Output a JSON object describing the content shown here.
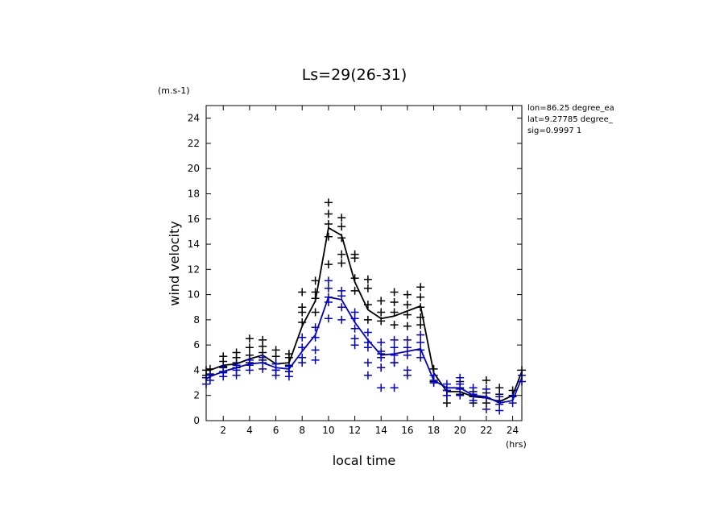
{
  "chart_data": {
    "type": "line",
    "title": "Ls=29(26-31)",
    "xlabel": "local time",
    "ylabel": "wind velocity",
    "y_unit": "(m.s-1)",
    "x_unit": "(hrs)",
    "xlim": [
      0.7,
      24.7
    ],
    "ylim": [
      0,
      25
    ],
    "x_ticks": [
      2,
      4,
      6,
      8,
      10,
      12,
      14,
      16,
      18,
      20,
      22,
      24
    ],
    "y_ticks": [
      0,
      2,
      4,
      6,
      8,
      10,
      12,
      14,
      16,
      18,
      20,
      22,
      24
    ],
    "info_lines": [
      "lon=86.25 degree_ea",
      "lat=9.27785 degree_",
      "sig=0.9997 1"
    ],
    "colors": {
      "black_series": "#000000",
      "blue_series": "#0000cc"
    },
    "series": [
      {
        "color": "#000000",
        "x": [
          0.7,
          1,
          2,
          3,
          4,
          5,
          6,
          7,
          8,
          9,
          10,
          11,
          12,
          13,
          14,
          15,
          16,
          17,
          18,
          19,
          20,
          21,
          22,
          23,
          24,
          24.7
        ],
        "values": [
          4.0,
          4.0,
          4.4,
          4.5,
          4.9,
          5.2,
          4.5,
          4.6,
          7.5,
          9.5,
          15.3,
          14.7,
          11.0,
          8.8,
          8.1,
          8.3,
          8.7,
          9.1,
          3.8,
          2.3,
          2.3,
          1.9,
          1.8,
          1.5,
          2.0,
          3.9
        ],
        "scatter": [
          [
            0.7,
            4.0
          ],
          [
            0.7,
            3.6
          ],
          [
            1,
            4.1
          ],
          [
            1,
            3.7
          ],
          [
            2,
            5.1
          ],
          [
            2,
            4.7
          ],
          [
            2,
            4.3
          ],
          [
            2,
            3.9
          ],
          [
            3,
            5.4
          ],
          [
            3,
            5.0
          ],
          [
            3,
            4.6
          ],
          [
            3,
            4.2
          ],
          [
            4,
            6.5
          ],
          [
            4,
            5.8
          ],
          [
            4,
            5.2
          ],
          [
            4,
            4.6
          ],
          [
            5,
            6.4
          ],
          [
            5,
            5.9
          ],
          [
            5,
            5.4
          ],
          [
            5,
            4.8
          ],
          [
            6,
            5.6
          ],
          [
            6,
            5.1
          ],
          [
            6,
            4.5
          ],
          [
            6,
            4.0
          ],
          [
            7,
            5.3
          ],
          [
            7,
            5.0
          ],
          [
            7,
            4.4
          ],
          [
            7,
            3.9
          ],
          [
            8,
            10.2
          ],
          [
            8,
            9.0
          ],
          [
            8,
            8.6
          ],
          [
            8,
            7.8
          ],
          [
            9,
            11.1
          ],
          [
            9,
            10.2
          ],
          [
            9,
            9.7
          ],
          [
            9,
            8.6
          ],
          [
            10,
            17.3
          ],
          [
            10,
            16.4
          ],
          [
            10,
            15.6
          ],
          [
            10,
            14.6
          ],
          [
            10,
            12.4
          ],
          [
            11,
            16.1
          ],
          [
            11,
            15.4
          ],
          [
            11,
            14.5
          ],
          [
            11,
            13.2
          ],
          [
            11,
            12.5
          ],
          [
            12,
            13.2
          ],
          [
            12,
            12.9
          ],
          [
            12,
            11.3
          ],
          [
            12,
            10.3
          ],
          [
            13,
            11.2
          ],
          [
            13,
            10.5
          ],
          [
            13,
            9.2
          ],
          [
            13,
            8.0
          ],
          [
            14,
            9.5
          ],
          [
            14,
            8.6
          ],
          [
            14,
            7.9
          ],
          [
            14,
            5.3
          ],
          [
            14,
            4.2
          ],
          [
            15,
            10.2
          ],
          [
            15,
            9.4
          ],
          [
            15,
            8.6
          ],
          [
            15,
            7.6
          ],
          [
            15,
            4.6
          ],
          [
            16,
            10.0
          ],
          [
            16,
            9.2
          ],
          [
            16,
            8.4
          ],
          [
            16,
            7.5
          ],
          [
            17,
            10.6
          ],
          [
            17,
            9.8
          ],
          [
            17,
            9.0
          ],
          [
            17,
            8.2
          ],
          [
            17,
            7.6
          ],
          [
            18,
            4.1
          ],
          [
            18,
            3.6
          ],
          [
            18,
            3.1
          ],
          [
            19,
            2.4
          ],
          [
            19,
            2.0
          ],
          [
            19,
            1.4
          ],
          [
            20,
            3.1
          ],
          [
            20,
            2.6
          ],
          [
            20,
            2.1
          ],
          [
            21,
            2.3
          ],
          [
            21,
            1.9
          ],
          [
            21,
            1.4
          ],
          [
            22,
            3.2
          ],
          [
            22,
            2.2
          ],
          [
            22,
            1.4
          ],
          [
            23,
            2.6
          ],
          [
            23,
            2.1
          ],
          [
            23,
            1.6
          ],
          [
            24,
            2.4
          ],
          [
            24,
            2.0
          ],
          [
            24.7,
            4.0
          ],
          [
            24.7,
            3.6
          ]
        ]
      },
      {
        "color": "#0000cc",
        "x": [
          0.7,
          1,
          2,
          3,
          4,
          5,
          6,
          7,
          8,
          9,
          10,
          11,
          12,
          13,
          14,
          15,
          16,
          17,
          18,
          19,
          20,
          21,
          22,
          23,
          24,
          24.7
        ],
        "values": [
          3.3,
          3.5,
          3.9,
          4.2,
          4.5,
          4.6,
          4.2,
          4.1,
          5.5,
          6.8,
          9.8,
          9.6,
          7.8,
          6.4,
          5.2,
          5.3,
          5.5,
          5.7,
          3.2,
          2.6,
          2.6,
          2.0,
          1.9,
          1.4,
          1.6,
          3.4
        ],
        "scatter": [
          [
            0.7,
            3.4
          ],
          [
            0.7,
            2.9
          ],
          [
            1,
            3.6
          ],
          [
            1,
            3.2
          ],
          [
            2,
            4.2
          ],
          [
            2,
            3.8
          ],
          [
            2,
            3.5
          ],
          [
            3,
            4.4
          ],
          [
            3,
            4.0
          ],
          [
            3,
            3.6
          ],
          [
            4,
            4.8
          ],
          [
            4,
            4.4
          ],
          [
            4,
            4.0
          ],
          [
            5,
            5.0
          ],
          [
            5,
            4.6
          ],
          [
            5,
            4.1
          ],
          [
            6,
            4.5
          ],
          [
            6,
            4.0
          ],
          [
            6,
            3.6
          ],
          [
            7,
            4.3
          ],
          [
            7,
            3.9
          ],
          [
            7,
            3.5
          ],
          [
            8,
            6.6
          ],
          [
            8,
            5.8
          ],
          [
            8,
            5.0
          ],
          [
            8,
            4.6
          ],
          [
            9,
            7.4
          ],
          [
            9,
            6.6
          ],
          [
            9,
            5.6
          ],
          [
            9,
            4.8
          ],
          [
            10,
            11.1
          ],
          [
            10,
            10.5
          ],
          [
            10,
            9.8
          ],
          [
            10,
            9.4
          ],
          [
            10,
            8.1
          ],
          [
            11,
            10.3
          ],
          [
            11,
            9.9
          ],
          [
            11,
            9.0
          ],
          [
            11,
            8.0
          ],
          [
            12,
            8.6
          ],
          [
            12,
            8.1
          ],
          [
            12,
            7.3
          ],
          [
            12,
            6.5
          ],
          [
            12,
            6.0
          ],
          [
            13,
            7.0
          ],
          [
            13,
            6.2
          ],
          [
            13,
            5.8
          ],
          [
            13,
            4.6
          ],
          [
            13,
            3.6
          ],
          [
            14,
            6.2
          ],
          [
            14,
            5.5
          ],
          [
            14,
            5.0
          ],
          [
            14,
            4.2
          ],
          [
            14,
            2.6
          ],
          [
            15,
            6.4
          ],
          [
            15,
            5.8
          ],
          [
            15,
            5.2
          ],
          [
            15,
            4.6
          ],
          [
            15,
            2.6
          ],
          [
            16,
            6.4
          ],
          [
            16,
            5.8
          ],
          [
            16,
            5.2
          ],
          [
            16,
            4.0
          ],
          [
            16,
            3.6
          ],
          [
            17,
            6.8
          ],
          [
            17,
            6.2
          ],
          [
            17,
            5.6
          ],
          [
            17,
            5.0
          ],
          [
            18,
            3.6
          ],
          [
            18,
            3.2
          ],
          [
            18,
            3.0
          ],
          [
            19,
            2.9
          ],
          [
            19,
            2.4
          ],
          [
            19,
            2.0
          ],
          [
            20,
            3.4
          ],
          [
            20,
            2.9
          ],
          [
            20,
            2.5
          ],
          [
            20,
            2.0
          ],
          [
            21,
            2.6
          ],
          [
            21,
            2.1
          ],
          [
            21,
            1.6
          ],
          [
            22,
            2.5
          ],
          [
            22,
            1.8
          ],
          [
            22,
            0.9
          ],
          [
            23,
            1.9
          ],
          [
            23,
            1.3
          ],
          [
            23,
            0.8
          ],
          [
            24,
            1.9
          ],
          [
            24,
            1.4
          ],
          [
            24.7,
            3.6
          ],
          [
            24.7,
            3.1
          ]
        ]
      }
    ]
  }
}
